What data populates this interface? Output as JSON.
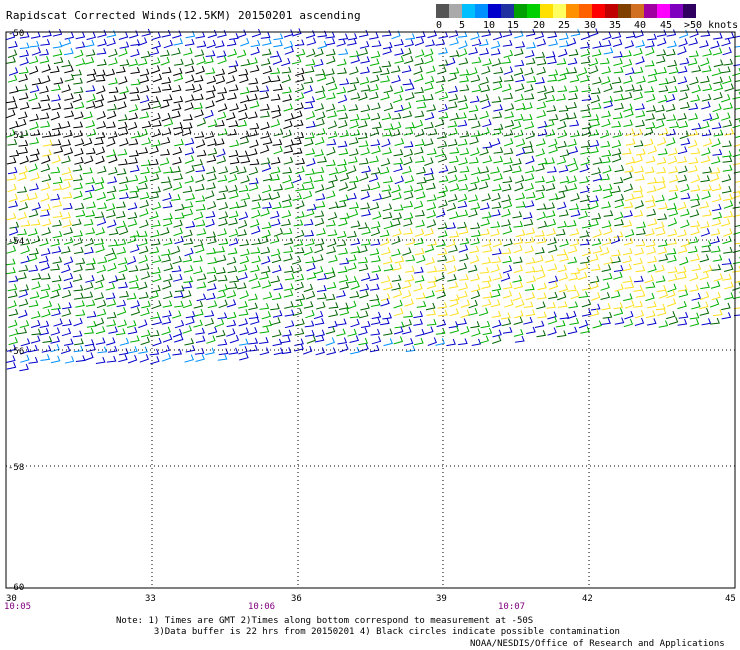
{
  "title": "Rapidscat Corrected Winds(12.5KM) 20150201 ascending",
  "colorbar": {
    "colors": [
      "#555555",
      "#aaaaaa",
      "#00bfff",
      "#0090ff",
      "#0000cc",
      "#2030a0",
      "#00a000",
      "#00d000",
      "#ffe000",
      "#ffff60",
      "#ff9000",
      "#ff6000",
      "#ff0000",
      "#c00000",
      "#804000",
      "#d07020",
      "#a000a0",
      "#ff00ff",
      "#8000c0",
      "#300060"
    ],
    "labels": [
      "0",
      "5",
      "10",
      "15",
      "20",
      "25",
      "30",
      "35",
      "40",
      "45",
      ">50 knots"
    ]
  },
  "map": {
    "lat_labels": [
      "-50",
      "-51",
      "-54",
      "-56",
      "-58",
      "-60"
    ],
    "lon_labels": [
      "30",
      "33",
      "36",
      "39",
      "42",
      "45"
    ],
    "time_labels": [
      "10:05",
      "10:06",
      "10:07"
    ]
  },
  "notes": [
    "Note: 1) Times are GMT 2)Times along bottom correspond to measurement at -50S",
    "       3)Data buffer is 22 hrs from 20150201 4) Black circles indicate possible contamination"
  ],
  "credit": "NOAA/NESDIS/Office of Research and Applications",
  "wind_colors": {
    "black": "#000000",
    "blue": "#0000cc",
    "lightblue": "#0090ff",
    "green": "#00b000",
    "darkgreen": "#006400",
    "yellow": "#ffe020"
  }
}
